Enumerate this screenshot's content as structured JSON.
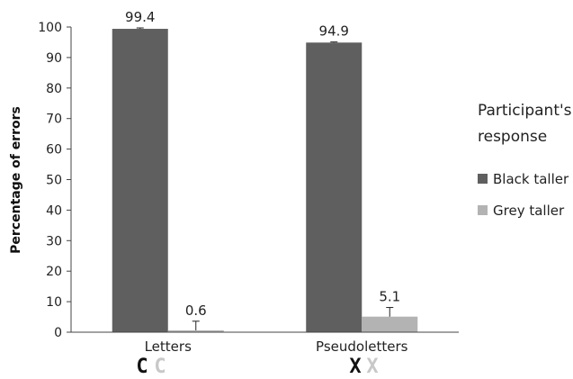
{
  "chart_data": {
    "type": "bar",
    "categories": [
      "Letters",
      "Pseudoletters"
    ],
    "category_glyphs": [
      {
        "black": "C",
        "grey": "C"
      },
      {
        "black": "X",
        "grey": "X"
      }
    ],
    "series": [
      {
        "name": "Black taller",
        "values": [
          99.4,
          94.9
        ],
        "errors": [
          0.3,
          0.2
        ],
        "color": "#5f5f5f"
      },
      {
        "name": "Grey taller",
        "values": [
          0.6,
          5.1
        ],
        "errors": [
          3.0,
          3.0
        ],
        "color": "#b3b3b3"
      }
    ],
    "data_labels": [
      "99.4",
      "94.9",
      "0.6",
      "5.1"
    ],
    "title": "",
    "xlabel": "",
    "ylabel": "Percentage of errors",
    "ylim": [
      0,
      100
    ],
    "yticks": [
      "0",
      "10",
      "20",
      "30",
      "40",
      "50",
      "60",
      "70",
      "80",
      "90",
      "100"
    ],
    "grid": false,
    "legend": {
      "title_line1": "Participant's",
      "title_line2": "response",
      "placement": "right"
    }
  }
}
